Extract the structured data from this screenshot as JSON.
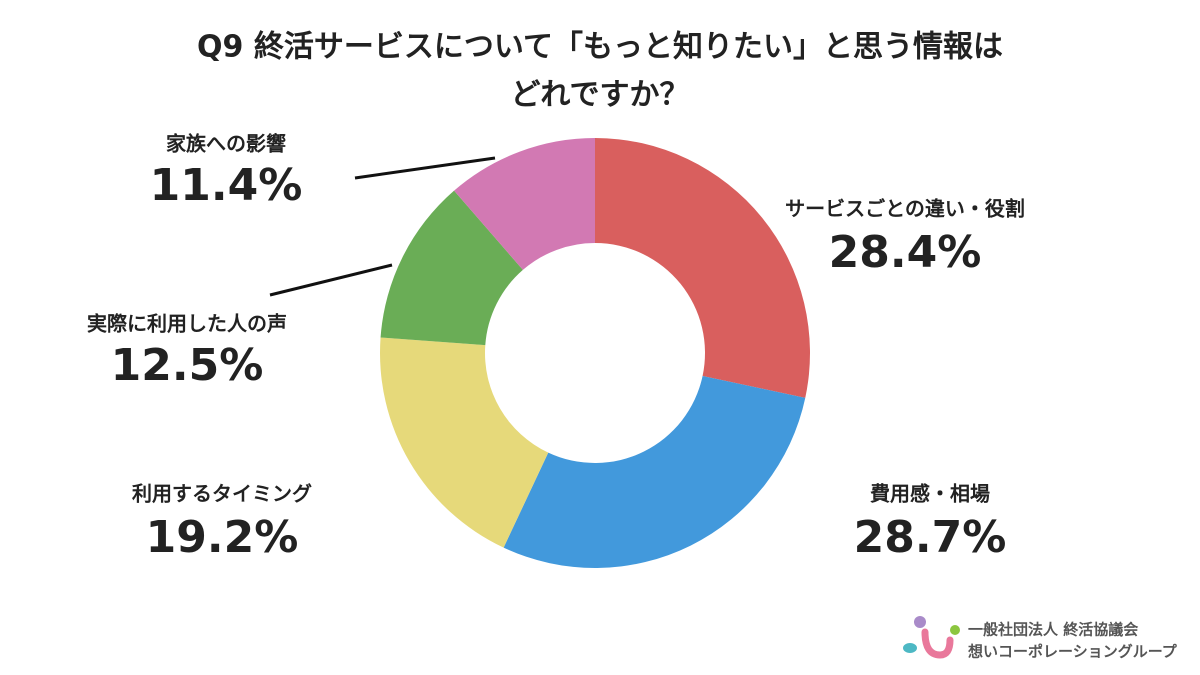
{
  "chart_data": {
    "type": "donut",
    "title": [
      "Q9 終活サービスについて「もっと知りたい」と思う情報は",
      "どれですか？"
    ],
    "categories": [
      "サービスごとの違い・役割",
      "費用感・相場",
      "利用するタイミング",
      "実際に利用した人の声",
      "家族への影響"
    ],
    "values": [
      28.4,
      28.7,
      19.2,
      12.5,
      11.4
    ],
    "value_labels": [
      "28.4%",
      "28.7%",
      "19.2%",
      "12.5%",
      "11.4%"
    ],
    "colors": [
      "#d95f5e",
      "#4299dc",
      "#e6d97a",
      "#6aad56",
      "#d279b3"
    ]
  },
  "logo": {
    "line1": "一般社団法人 終活協議会",
    "line2": "想いコーポレーショングループ"
  }
}
